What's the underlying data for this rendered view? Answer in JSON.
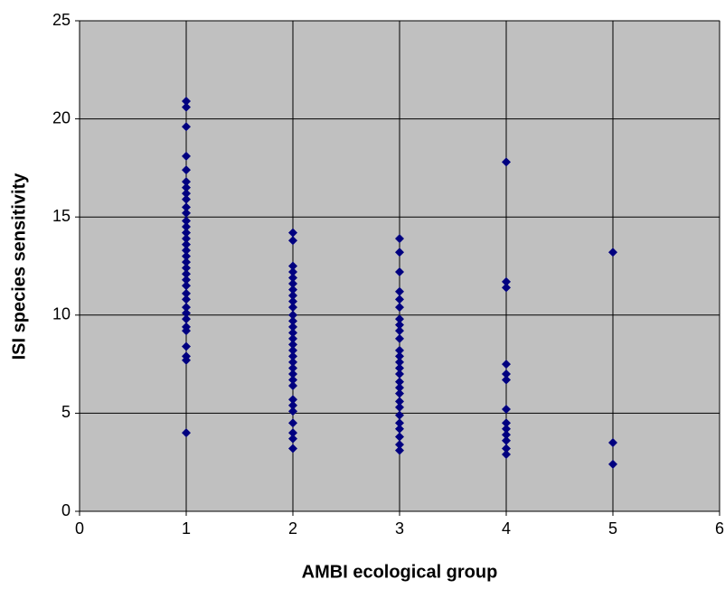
{
  "chart_data": {
    "type": "scatter",
    "x_label": "AMBI ecological group",
    "y_label": "ISI species sensitivity",
    "color": "#000080",
    "plot_background": "#c0c0c0",
    "grid": true,
    "xlim": [
      0,
      6
    ],
    "xticks": [
      0,
      1,
      2,
      3,
      4,
      5,
      6
    ],
    "ylim": [
      0,
      25
    ],
    "yticks": [
      0,
      5,
      10,
      15,
      20,
      25
    ],
    "x": [
      1,
      1,
      1,
      1,
      1,
      1,
      1,
      1,
      1,
      1,
      1,
      1,
      1,
      1,
      1,
      1,
      1,
      1,
      1,
      1,
      1,
      1,
      1,
      1,
      1,
      1,
      1,
      1,
      1,
      1,
      1,
      1,
      1,
      1,
      2,
      2,
      2,
      2,
      2,
      2,
      2,
      2,
      2,
      2,
      2,
      2,
      2,
      2,
      2,
      2,
      2,
      2,
      2,
      2,
      2,
      2,
      2,
      2,
      2,
      2,
      2,
      2,
      2,
      2,
      3,
      3,
      3,
      3,
      3,
      3,
      3,
      3,
      3,
      3,
      3,
      3,
      3,
      3,
      3,
      3,
      3,
      3,
      3,
      3,
      3,
      3,
      3,
      3,
      3,
      3,
      4,
      4,
      4,
      4,
      4,
      4,
      4,
      4,
      4,
      4,
      4,
      4,
      4,
      5,
      5,
      5
    ],
    "values": [
      20.9,
      20.6,
      19.6,
      18.1,
      17.4,
      16.8,
      16.5,
      16.2,
      15.9,
      15.5,
      15.2,
      14.8,
      14.5,
      14.2,
      13.9,
      13.6,
      13.3,
      13.0,
      12.7,
      12.4,
      12.1,
      11.8,
      11.5,
      11.1,
      10.8,
      10.4,
      10.1,
      9.8,
      9.4,
      9.2,
      8.4,
      7.9,
      7.7,
      4.0,
      14.2,
      13.8,
      12.5,
      12.2,
      11.9,
      11.6,
      11.3,
      11.0,
      10.7,
      10.4,
      10.0,
      9.7,
      9.4,
      9.1,
      8.8,
      8.5,
      8.2,
      7.9,
      7.6,
      7.3,
      7.0,
      6.7,
      6.4,
      5.7,
      5.4,
      5.1,
      4.5,
      4.0,
      3.7,
      3.2,
      13.9,
      13.2,
      12.2,
      11.2,
      10.8,
      10.4,
      9.8,
      9.5,
      9.2,
      8.8,
      8.2,
      7.9,
      7.6,
      7.3,
      7.0,
      6.6,
      6.3,
      6.0,
      5.6,
      5.3,
      4.9,
      4.5,
      4.2,
      3.8,
      3.4,
      3.1,
      17.8,
      11.7,
      11.4,
      7.5,
      7.0,
      6.7,
      5.2,
      4.5,
      4.2,
      3.9,
      3.6,
      3.2,
      2.9,
      13.2,
      3.5,
      2.4
    ]
  }
}
